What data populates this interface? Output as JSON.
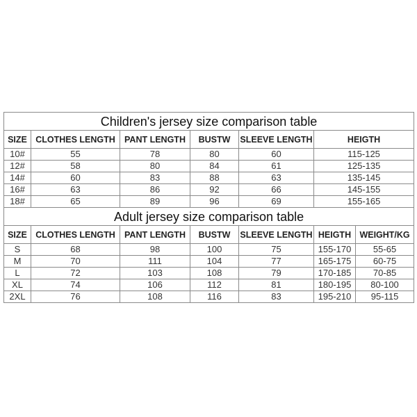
{
  "children": {
    "title": "Children's jersey size comparison table",
    "headers": [
      "SIZE",
      "CLOTHES LENGTH",
      "PANT LENGTH",
      "BUSTW",
      "SLEEVE LENGTH",
      "HEIGTH"
    ],
    "rows": [
      [
        "10#",
        "55",
        "78",
        "80",
        "60",
        "115-125"
      ],
      [
        "12#",
        "58",
        "80",
        "84",
        "61",
        "125-135"
      ],
      [
        "14#",
        "60",
        "83",
        "88",
        "63",
        "135-145"
      ],
      [
        "16#",
        "63",
        "86",
        "92",
        "66",
        "145-155"
      ],
      [
        "18#",
        "65",
        "89",
        "96",
        "69",
        "155-165"
      ]
    ]
  },
  "adult": {
    "title": "Adult jersey size comparison table",
    "headers": [
      "SIZE",
      "CLOTHES LENGTH",
      "PANT LENGTH",
      "BUSTW",
      "SLEEVE LENGTH",
      "HEIGTH",
      "WEIGHT/KG"
    ],
    "rows": [
      [
        "S",
        "68",
        "98",
        "100",
        "75",
        "155-170",
        "55-65"
      ],
      [
        "M",
        "70",
        "111",
        "104",
        "77",
        "165-175",
        "60-75"
      ],
      [
        "L",
        "72",
        "103",
        "108",
        "79",
        "170-185",
        "70-85"
      ],
      [
        "XL",
        "74",
        "106",
        "112",
        "81",
        "180-195",
        "80-100"
      ],
      [
        "2XL",
        "76",
        "108",
        "116",
        "83",
        "195-210",
        "95-115"
      ]
    ]
  }
}
